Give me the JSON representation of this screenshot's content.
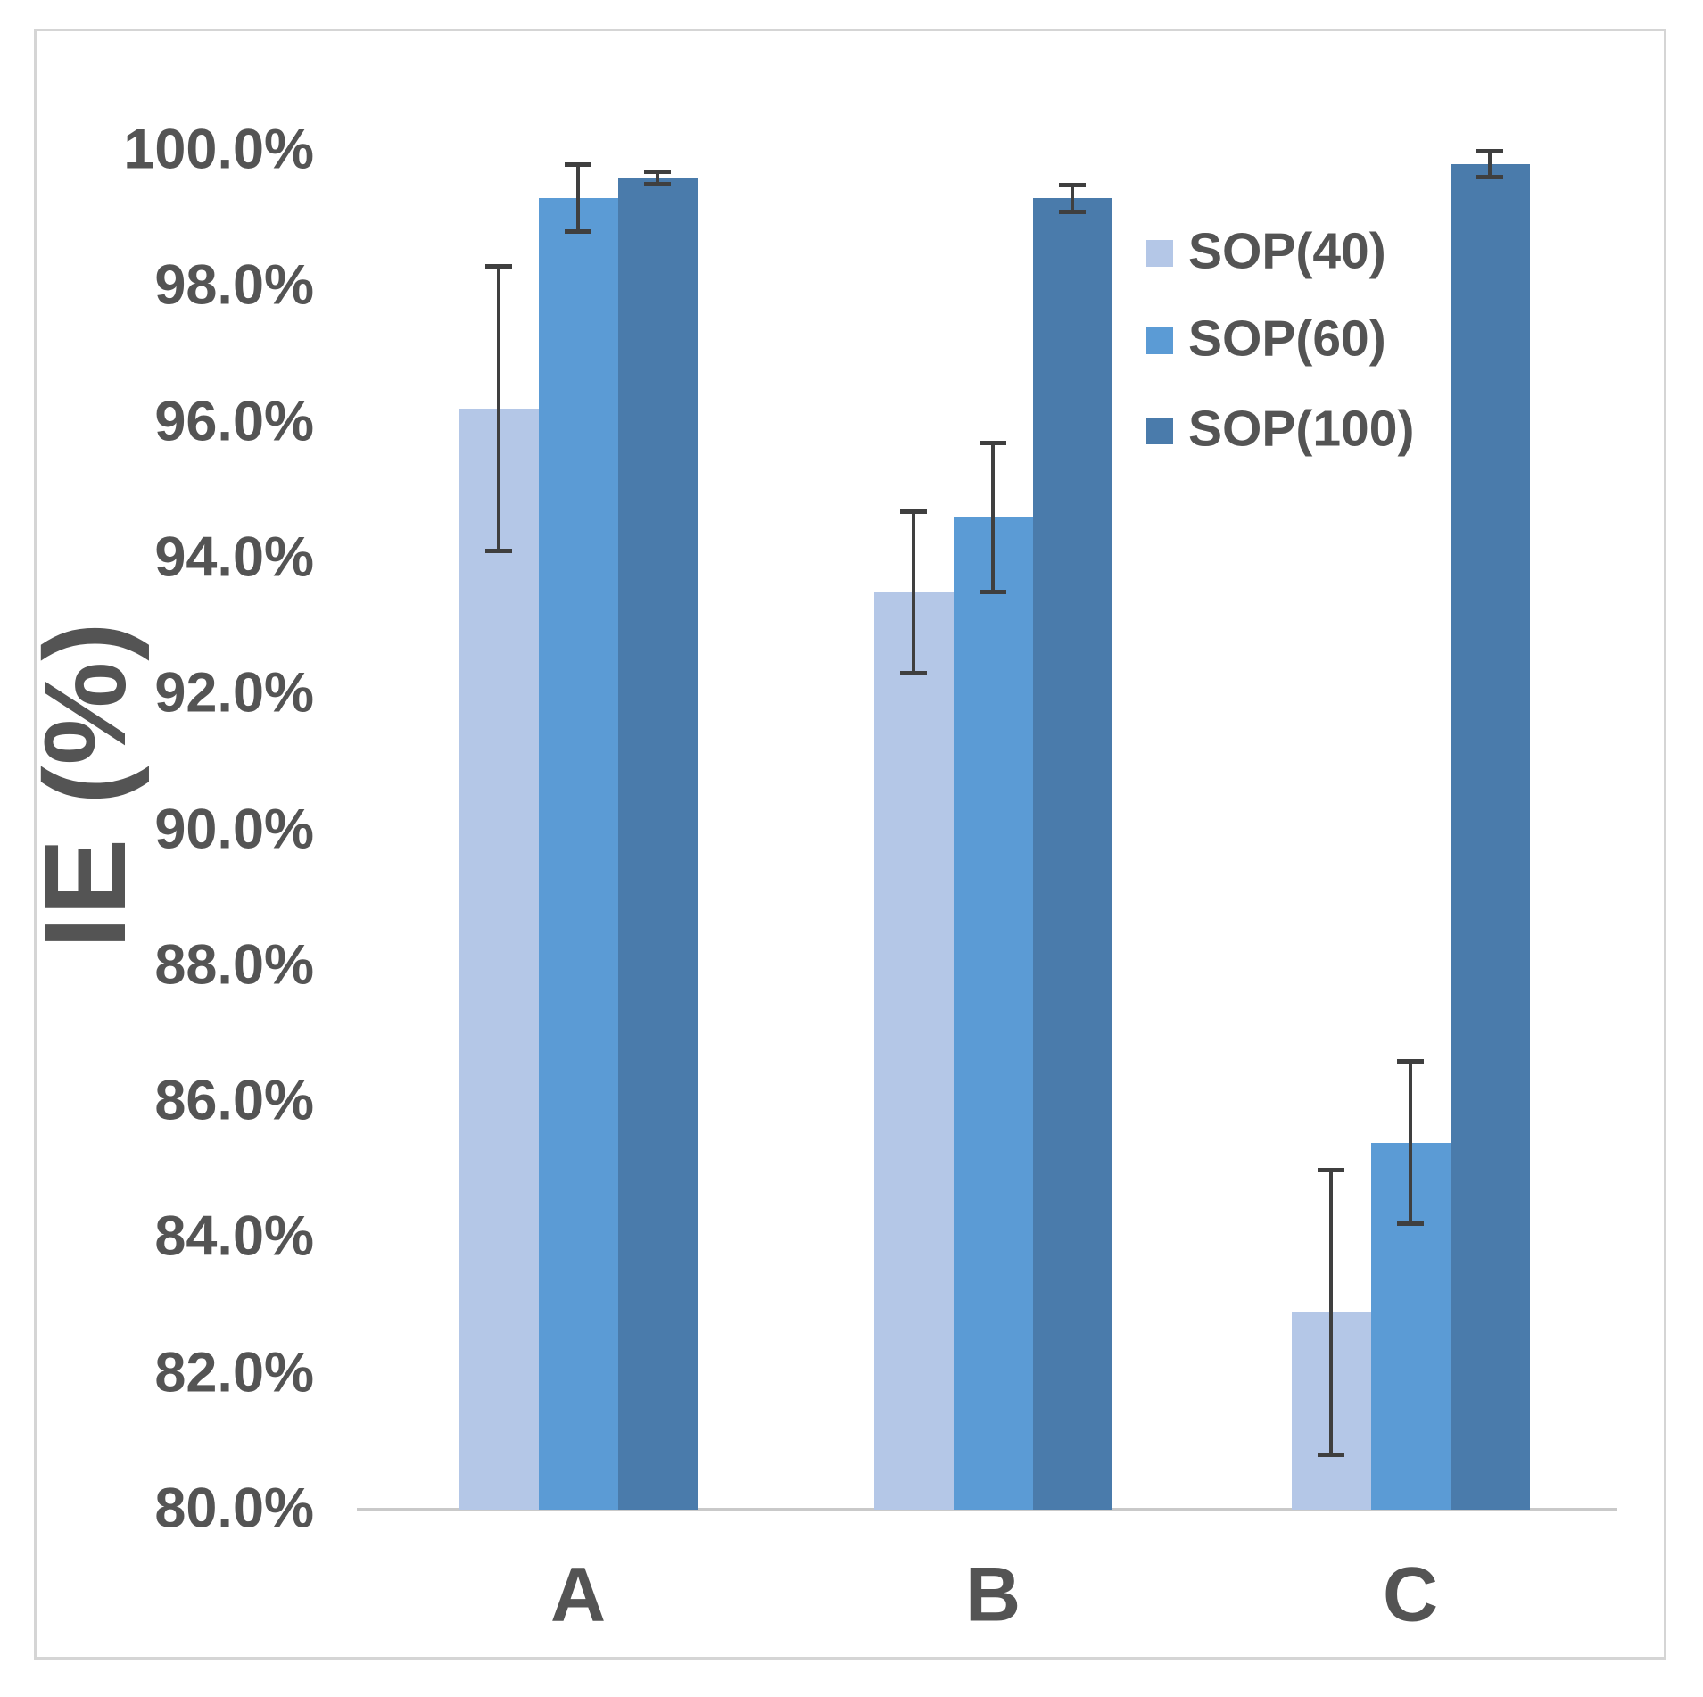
{
  "chart_data": {
    "type": "bar",
    "title": "",
    "categories": [
      "A",
      "B",
      "C"
    ],
    "series": [
      {
        "name": "SOP(40)",
        "color": "#b4c7e7",
        "values": [
          96.2,
          93.5,
          82.9
        ],
        "errors": [
          2.1,
          1.2,
          2.1
        ]
      },
      {
        "name": "SOP(60)",
        "color": "#5b9bd5",
        "values": [
          99.3,
          94.6,
          85.4
        ],
        "errors": [
          0.5,
          1.1,
          1.2
        ]
      },
      {
        "name": "SOP(100)",
        "color": "#4a7bab",
        "values": [
          99.6,
          99.3,
          99.8
        ],
        "errors": [
          0.1,
          0.2,
          0.2
        ]
      }
    ],
    "xlabel": "",
    "ylabel": "IE (%)",
    "ylim": [
      80,
      100
    ],
    "ytick_step": 2,
    "ytick_decimals": 1,
    "ytick_suffix": "%",
    "grid": false,
    "legend_position": "upper-right-inside",
    "error_bars": true,
    "colors": {
      "text": "#545454",
      "axis_line": "#c9c9c9",
      "error_bar": "#3f3f3f",
      "frame_border": "#d5d5d5",
      "background": "#ffffff"
    }
  }
}
